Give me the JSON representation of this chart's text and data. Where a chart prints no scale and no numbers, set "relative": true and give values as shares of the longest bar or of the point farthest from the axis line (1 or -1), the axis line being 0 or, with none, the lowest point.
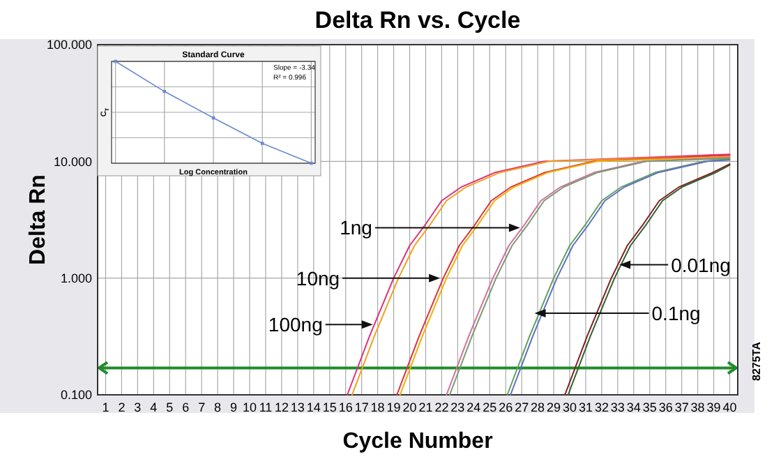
{
  "chart_data": [
    {
      "type": "line",
      "title": "Delta Rn vs. Cycle",
      "xlabel": "Cycle Number",
      "ylabel": "Delta Rn",
      "log": "y",
      "grid": true,
      "line_style": "solid",
      "marker": "none",
      "xlim": [
        0.5,
        40.5
      ],
      "xticks": [
        1,
        2,
        3,
        4,
        5,
        6,
        7,
        8,
        9,
        10,
        11,
        12,
        13,
        14,
        15,
        16,
        17,
        18,
        19,
        20,
        21,
        22,
        23,
        24,
        25,
        26,
        27,
        28,
        29,
        30,
        31,
        32,
        33,
        34,
        35,
        36,
        37,
        38,
        39,
        40
      ],
      "ylim": [
        0.1,
        100
      ],
      "yticks": [
        {
          "value": 0.1,
          "label": "0.100"
        },
        {
          "value": 1,
          "label": "1.000"
        },
        {
          "value": 10,
          "label": "10.000"
        },
        {
          "value": 100,
          "label": "100.000"
        }
      ],
      "ref_lines": [
        {
          "axis": "y",
          "value": 0.17,
          "color": "#1e8c2a"
        }
      ],
      "series": [
        {
          "color": "#e0307a",
          "x": [
            16.1,
            17.5,
            19,
            20,
            21,
            22,
            23.2,
            25.3,
            28.4,
            40
          ],
          "values": [
            0.1,
            0.32,
            1,
            1.9,
            2.9,
            4.6,
            6,
            8,
            10,
            11.5
          ]
        },
        {
          "color": "#f0a020",
          "x": [
            16.4,
            17.8,
            19.3,
            20.3,
            21.3,
            22.3,
            23.5,
            25.6,
            28.7,
            40
          ],
          "values": [
            0.1,
            0.32,
            1,
            1.9,
            2.9,
            4.6,
            6,
            8,
            10,
            11.2
          ]
        },
        {
          "color": "#e03040",
          "x": [
            19.2,
            20.6,
            22.1,
            23.1,
            24.1,
            25.1,
            26.3,
            28.4,
            31.5,
            40
          ],
          "values": [
            0.1,
            0.32,
            1,
            1.9,
            2.9,
            4.6,
            6,
            8,
            10,
            11.3
          ]
        },
        {
          "color": "#f0b000",
          "x": [
            19.4,
            20.8,
            22.3,
            23.3,
            24.3,
            25.3,
            26.5,
            28.6,
            31.7,
            40
          ],
          "values": [
            0.1,
            0.32,
            1,
            1.9,
            2.9,
            4.6,
            6,
            8,
            10,
            11
          ]
        },
        {
          "color": "#d070a0",
          "x": [
            22.3,
            23.7,
            25.2,
            26.2,
            27.2,
            28.2,
            29.4,
            31.5,
            34.6,
            40
          ],
          "values": [
            0.1,
            0.32,
            1,
            1.9,
            2.9,
            4.6,
            6,
            8,
            10,
            10.8
          ]
        },
        {
          "color": "#7a9a70",
          "x": [
            22.5,
            23.9,
            25.4,
            26.4,
            27.4,
            28.4,
            29.6,
            31.7,
            34.8,
            40
          ],
          "values": [
            0.1,
            0.32,
            1,
            1.9,
            2.9,
            4.6,
            6,
            8,
            10,
            10.6
          ]
        },
        {
          "color": "#60a060",
          "x": [
            26.1,
            27.5,
            29,
            30,
            31,
            32,
            33.2,
            35.3,
            38.4,
            40
          ],
          "values": [
            0.1,
            0.32,
            1,
            1.9,
            2.9,
            4.6,
            6,
            8,
            10,
            10.5
          ]
        },
        {
          "color": "#6070c0",
          "x": [
            26.3,
            27.7,
            29.2,
            30.2,
            31.2,
            32.2,
            33.4,
            35.5,
            38.6,
            40
          ],
          "values": [
            0.1,
            0.32,
            1,
            1.9,
            2.9,
            4.6,
            6,
            8,
            10,
            10.3
          ]
        },
        {
          "color": "#802020",
          "x": [
            29.7,
            31.1,
            32.6,
            33.6,
            34.6,
            35.6,
            36.8,
            38.9,
            40
          ],
          "values": [
            0.1,
            0.32,
            1,
            1.9,
            2.9,
            4.6,
            6,
            8,
            9.5
          ]
        },
        {
          "color": "#306030",
          "x": [
            29.9,
            31.3,
            32.8,
            33.8,
            34.8,
            35.8,
            37,
            39.1,
            40
          ],
          "values": [
            0.1,
            0.32,
            1,
            1.9,
            2.9,
            4.6,
            6,
            8,
            9.3
          ]
        }
      ],
      "annotations": [
        {
          "text": "1ng",
          "x": 26.9,
          "y": 2.7
        },
        {
          "text": "10ng",
          "x": 21.9,
          "y": 1
        },
        {
          "text": "100ng",
          "x": 17.7,
          "y": 0.4
        },
        {
          "text": "0.1ng",
          "x": 27.8,
          "y": 0.5
        },
        {
          "text": "0.01ng",
          "x": 33.1,
          "y": 1.3
        },
        "8275TA"
      ]
    },
    {
      "type": "line",
      "title": "Standard Curve",
      "xlabel": "Log Concentration",
      "ylabel": "C$_{T}$",
      "relative": true,
      "grid": true,
      "marker": "square",
      "line_style": "solid",
      "categories": [
        null,
        null,
        null,
        null,
        null
      ],
      "series": [
        {
          "color": "#6a8ad0",
          "values": [
            1,
            0.705,
            0.445,
            0.195,
            0
          ]
        }
      ],
      "annotations": [
        "Slope = -3.34",
        "R² = 0.996"
      ]
    }
  ]
}
